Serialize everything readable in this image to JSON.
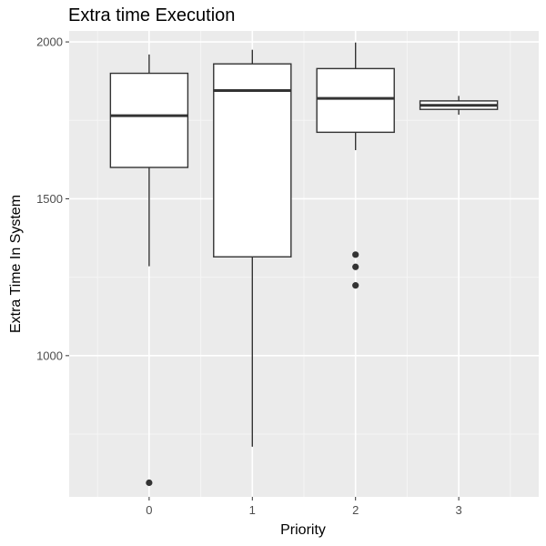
{
  "chart_data": {
    "type": "boxplot",
    "title": "Extra time Execution",
    "xlabel": "Priority",
    "ylabel": "Extra Time In System",
    "categories": [
      "0",
      "1",
      "2",
      "3"
    ],
    "ylim": [
      550,
      2035
    ],
    "y_ticks": [
      1000,
      1500,
      2000
    ],
    "y_tick_labels": [
      "1000",
      "1500",
      "2000"
    ],
    "grid": true,
    "legend": "none",
    "boxes": [
      {
        "category": "0",
        "whisker_low": 1285,
        "q1": 1600,
        "median": 1765,
        "q3": 1900,
        "whisker_high": 1960,
        "outliers": [
          595
        ]
      },
      {
        "category": "1",
        "whisker_low": 710,
        "q1": 1315,
        "median": 1845,
        "q3": 1930,
        "whisker_high": 1975,
        "outliers": []
      },
      {
        "category": "2",
        "whisker_low": 1655,
        "q1": 1712,
        "median": 1820,
        "q3": 1915,
        "whisker_high": 1998,
        "outliers": [
          1322,
          1283,
          1224
        ]
      },
      {
        "category": "3",
        "whisker_low": 1768,
        "q1": 1785,
        "median": 1798,
        "q3": 1812,
        "whisker_high": 1828,
        "outliers": []
      }
    ],
    "colors": {
      "panel_background": "#EBEBEB",
      "grid_major": "#FFFFFF",
      "grid_minor": "#F5F5F5",
      "box_fill": "#FFFFFF",
      "box_stroke": "#333333",
      "outlier": "#333333",
      "tick_text": "#4D4D4D",
      "tick_mark": "#333333"
    }
  }
}
